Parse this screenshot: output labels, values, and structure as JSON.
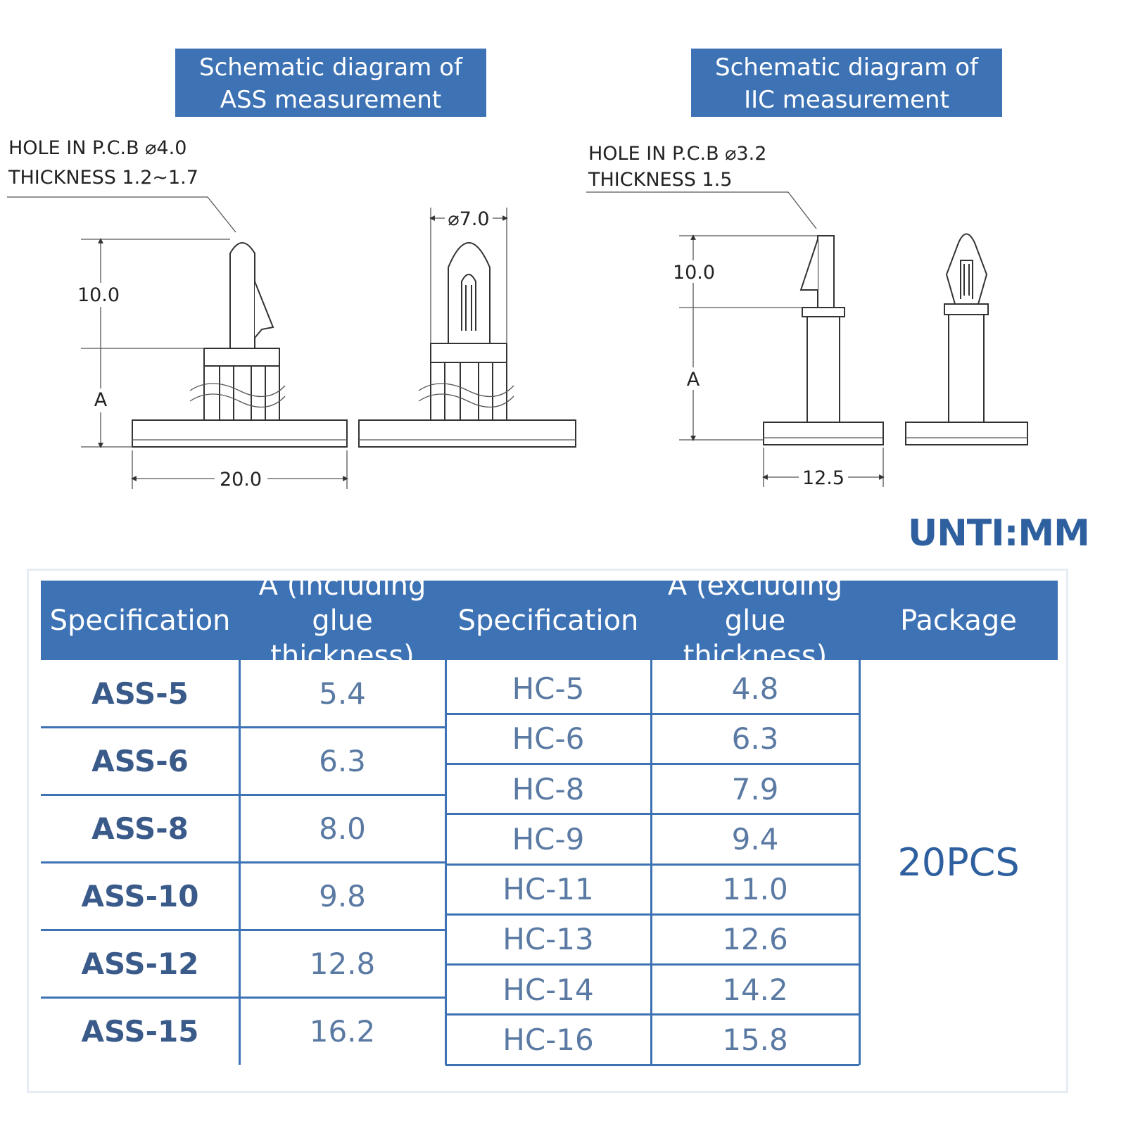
{
  "diagrams": [
    {
      "title": "Schematic diagram of ASS measurement",
      "hole": "HOLE IN P.C.B ⌀4.0",
      "thickness": "THICKNESS  1.2~1.7",
      "dims": [
        "10.0",
        "A",
        "20.0",
        "⌀7.0"
      ]
    },
    {
      "title": "Schematic diagram of IIC measurement",
      "hole": "HOLE IN P.C.B ⌀3.2",
      "thickness": "THICKNESS  1.5",
      "dims": [
        "10.0",
        "A",
        "12.5"
      ]
    }
  ],
  "unit": "UNTI:MM",
  "table": {
    "headers": [
      "Specification",
      "A (including glue thickness)",
      "Specification",
      "A (excluding glue thickness)",
      "Package"
    ],
    "left_rows": [
      [
        "ASS-5",
        "5.4"
      ],
      [
        "ASS-6",
        "6.3"
      ],
      [
        "ASS-8",
        "8.0"
      ],
      [
        "ASS-10",
        "9.8"
      ],
      [
        "ASS-12",
        "12.8"
      ],
      [
        "ASS-15",
        "16.2"
      ]
    ],
    "right_rows": [
      [
        "HC-5",
        "4.8"
      ],
      [
        "HC-6",
        "6.3"
      ],
      [
        "HC-8",
        "7.9"
      ],
      [
        "HC-9",
        "9.4"
      ],
      [
        "HC-11",
        "11.0"
      ],
      [
        "HC-13",
        "12.6"
      ],
      [
        "HC-14",
        "14.2"
      ],
      [
        "HC-16",
        "15.8"
      ]
    ],
    "package": "20PCS"
  }
}
